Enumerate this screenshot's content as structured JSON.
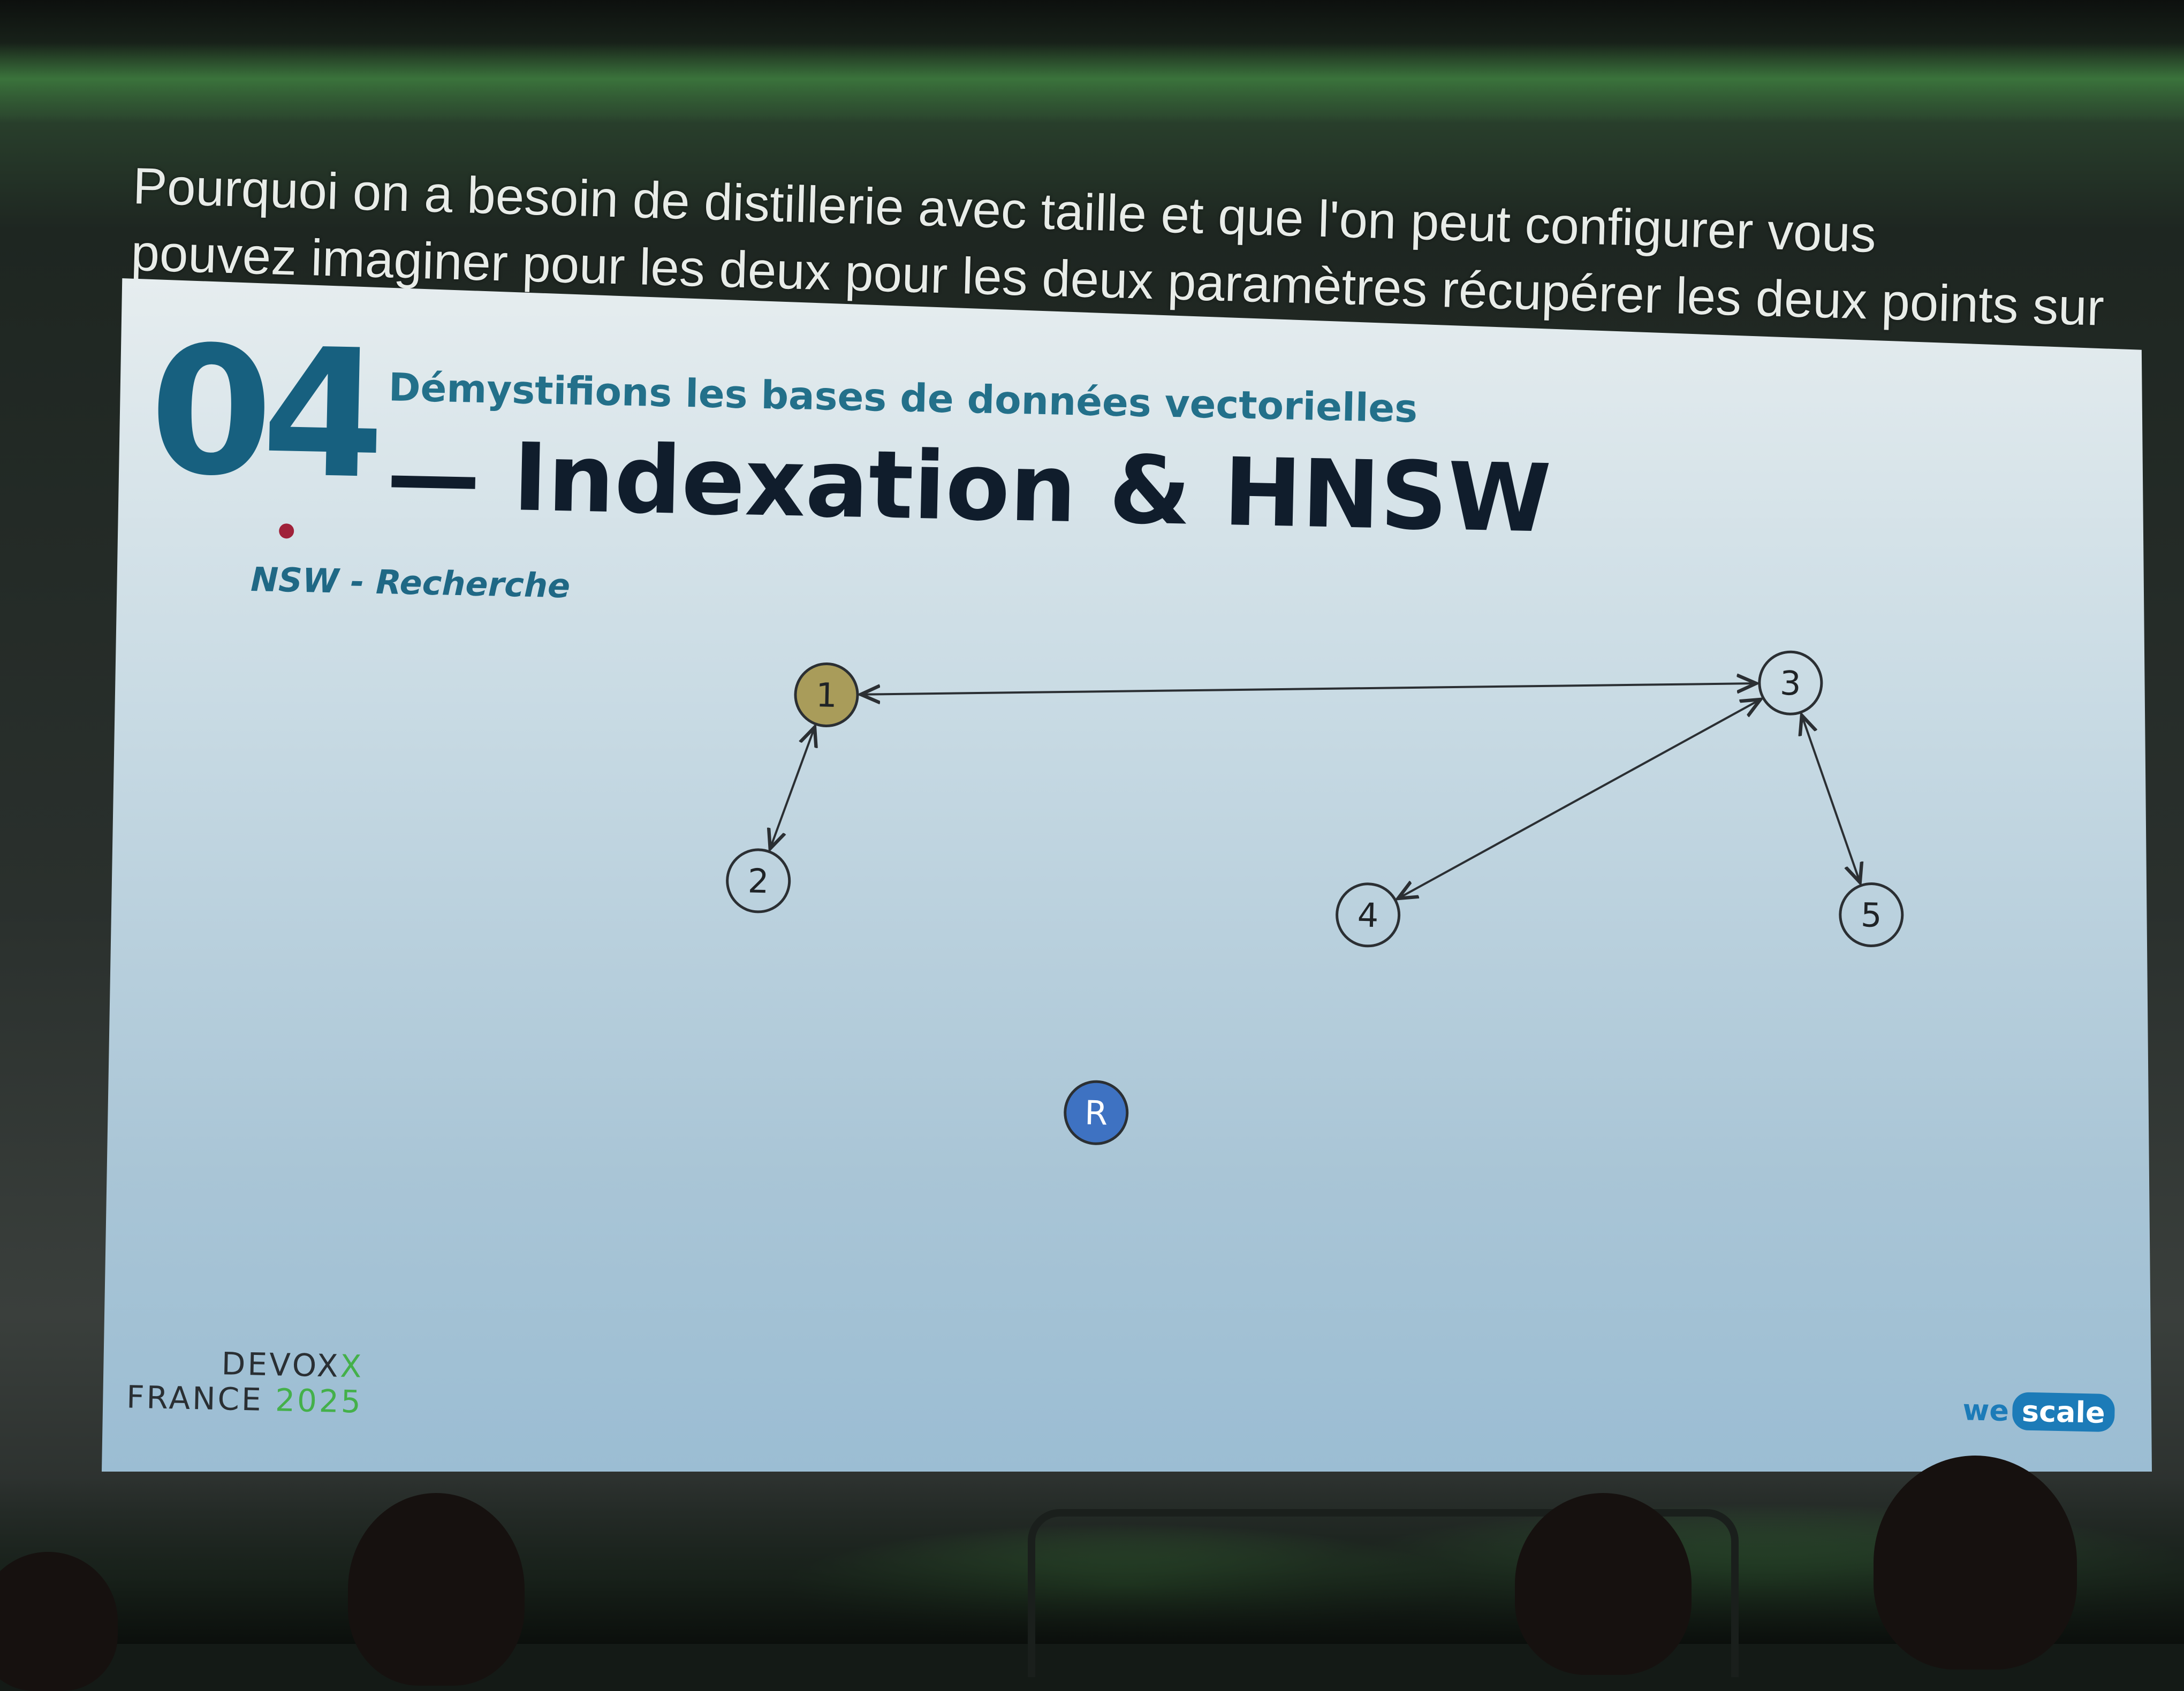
{
  "caption": {
    "line1": "Pourquoi on a besoin de distillerie avec taille et que l'on peut configurer vous",
    "line2": "pouvez imaginer pour les deux pour les deux paramètres récupérer les deux points sur"
  },
  "slide": {
    "section_number": "04",
    "subtitle": "Démystifions les bases de données vectorielles",
    "title": "— Indexation & HNSW",
    "diagram_label": "NSW - Recherche",
    "nodes": [
      {
        "id": "1",
        "label": "1",
        "highlighted": true
      },
      {
        "id": "2",
        "label": "2"
      },
      {
        "id": "3",
        "label": "3"
      },
      {
        "id": "4",
        "label": "4"
      },
      {
        "id": "5",
        "label": "5"
      },
      {
        "id": "R",
        "label": "R",
        "query": true
      }
    ],
    "edges": [
      [
        "1",
        "3"
      ],
      [
        "1",
        "2"
      ],
      [
        "3",
        "4"
      ],
      [
        "3",
        "5"
      ]
    ],
    "colors": {
      "highlight_node": "#a99c5a",
      "query_node": "#3e72c2",
      "pointer_dot": "#a0223a",
      "accent_teal": "#17607f",
      "devoxx_green": "#44b04a",
      "wescale_blue": "#1c7bb8"
    }
  },
  "footer": {
    "devoxx_line1_main": "DEVOX",
    "devoxx_line1_accent": "X",
    "devoxx_line2_main": "FRANCE ",
    "devoxx_line2_accent": "2025",
    "wescale_we": "we",
    "wescale_scale": "scale"
  }
}
